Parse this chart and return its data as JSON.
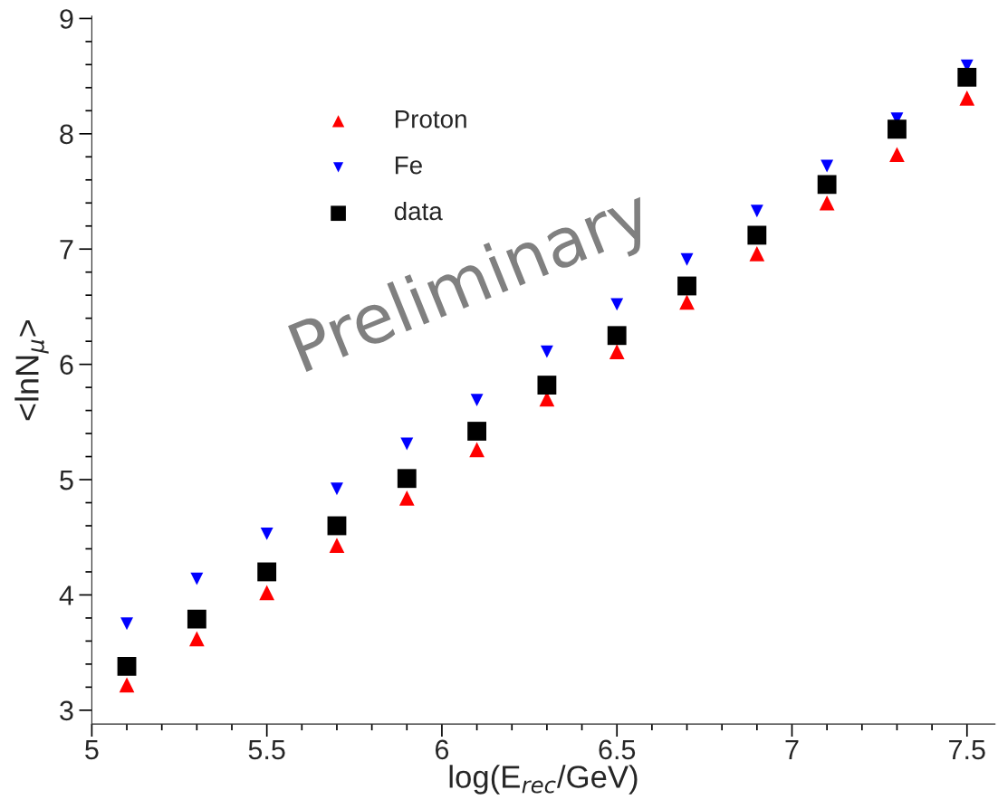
{
  "chart_data": {
    "type": "scatter",
    "xlabel": "log(E$_{rec}$/GeV)",
    "ylabel": "<lnN$_{μ}$>",
    "x": [
      5.1,
      5.3,
      5.5,
      5.7,
      5.9,
      6.1,
      6.3,
      6.5,
      6.7,
      6.9,
      7.1,
      7.3,
      7.5
    ],
    "series": [
      {
        "name": "Proton",
        "color": "#ff0000",
        "marker": "triangle",
        "values": [
          3.22,
          3.62,
          4.02,
          4.43,
          4.84,
          5.26,
          5.7,
          6.11,
          6.54,
          6.96,
          7.4,
          7.82,
          8.31
        ]
      },
      {
        "name": "Fe",
        "color": "#0000ff",
        "marker": "triangle_down",
        "values": [
          3.75,
          4.14,
          4.53,
          4.92,
          5.31,
          5.69,
          6.11,
          6.52,
          6.91,
          7.33,
          7.72,
          8.13,
          8.59
        ]
      },
      {
        "name": "data",
        "color": "#000000",
        "marker": "square",
        "values": [
          3.38,
          3.79,
          4.2,
          4.6,
          5.01,
          5.42,
          5.82,
          6.25,
          6.68,
          7.12,
          7.56,
          8.04,
          8.49
        ]
      }
    ],
    "xlim": [
      5.0,
      7.58
    ],
    "ylim": [
      2.88,
      9.02
    ],
    "xticks": [
      5,
      5.5,
      6,
      6.5,
      7,
      7.5
    ],
    "yticks": [
      3,
      4,
      5,
      6,
      7,
      8,
      9
    ],
    "grid": false,
    "legend": "top left",
    "annotations": [
      "Preliminary"
    ]
  }
}
